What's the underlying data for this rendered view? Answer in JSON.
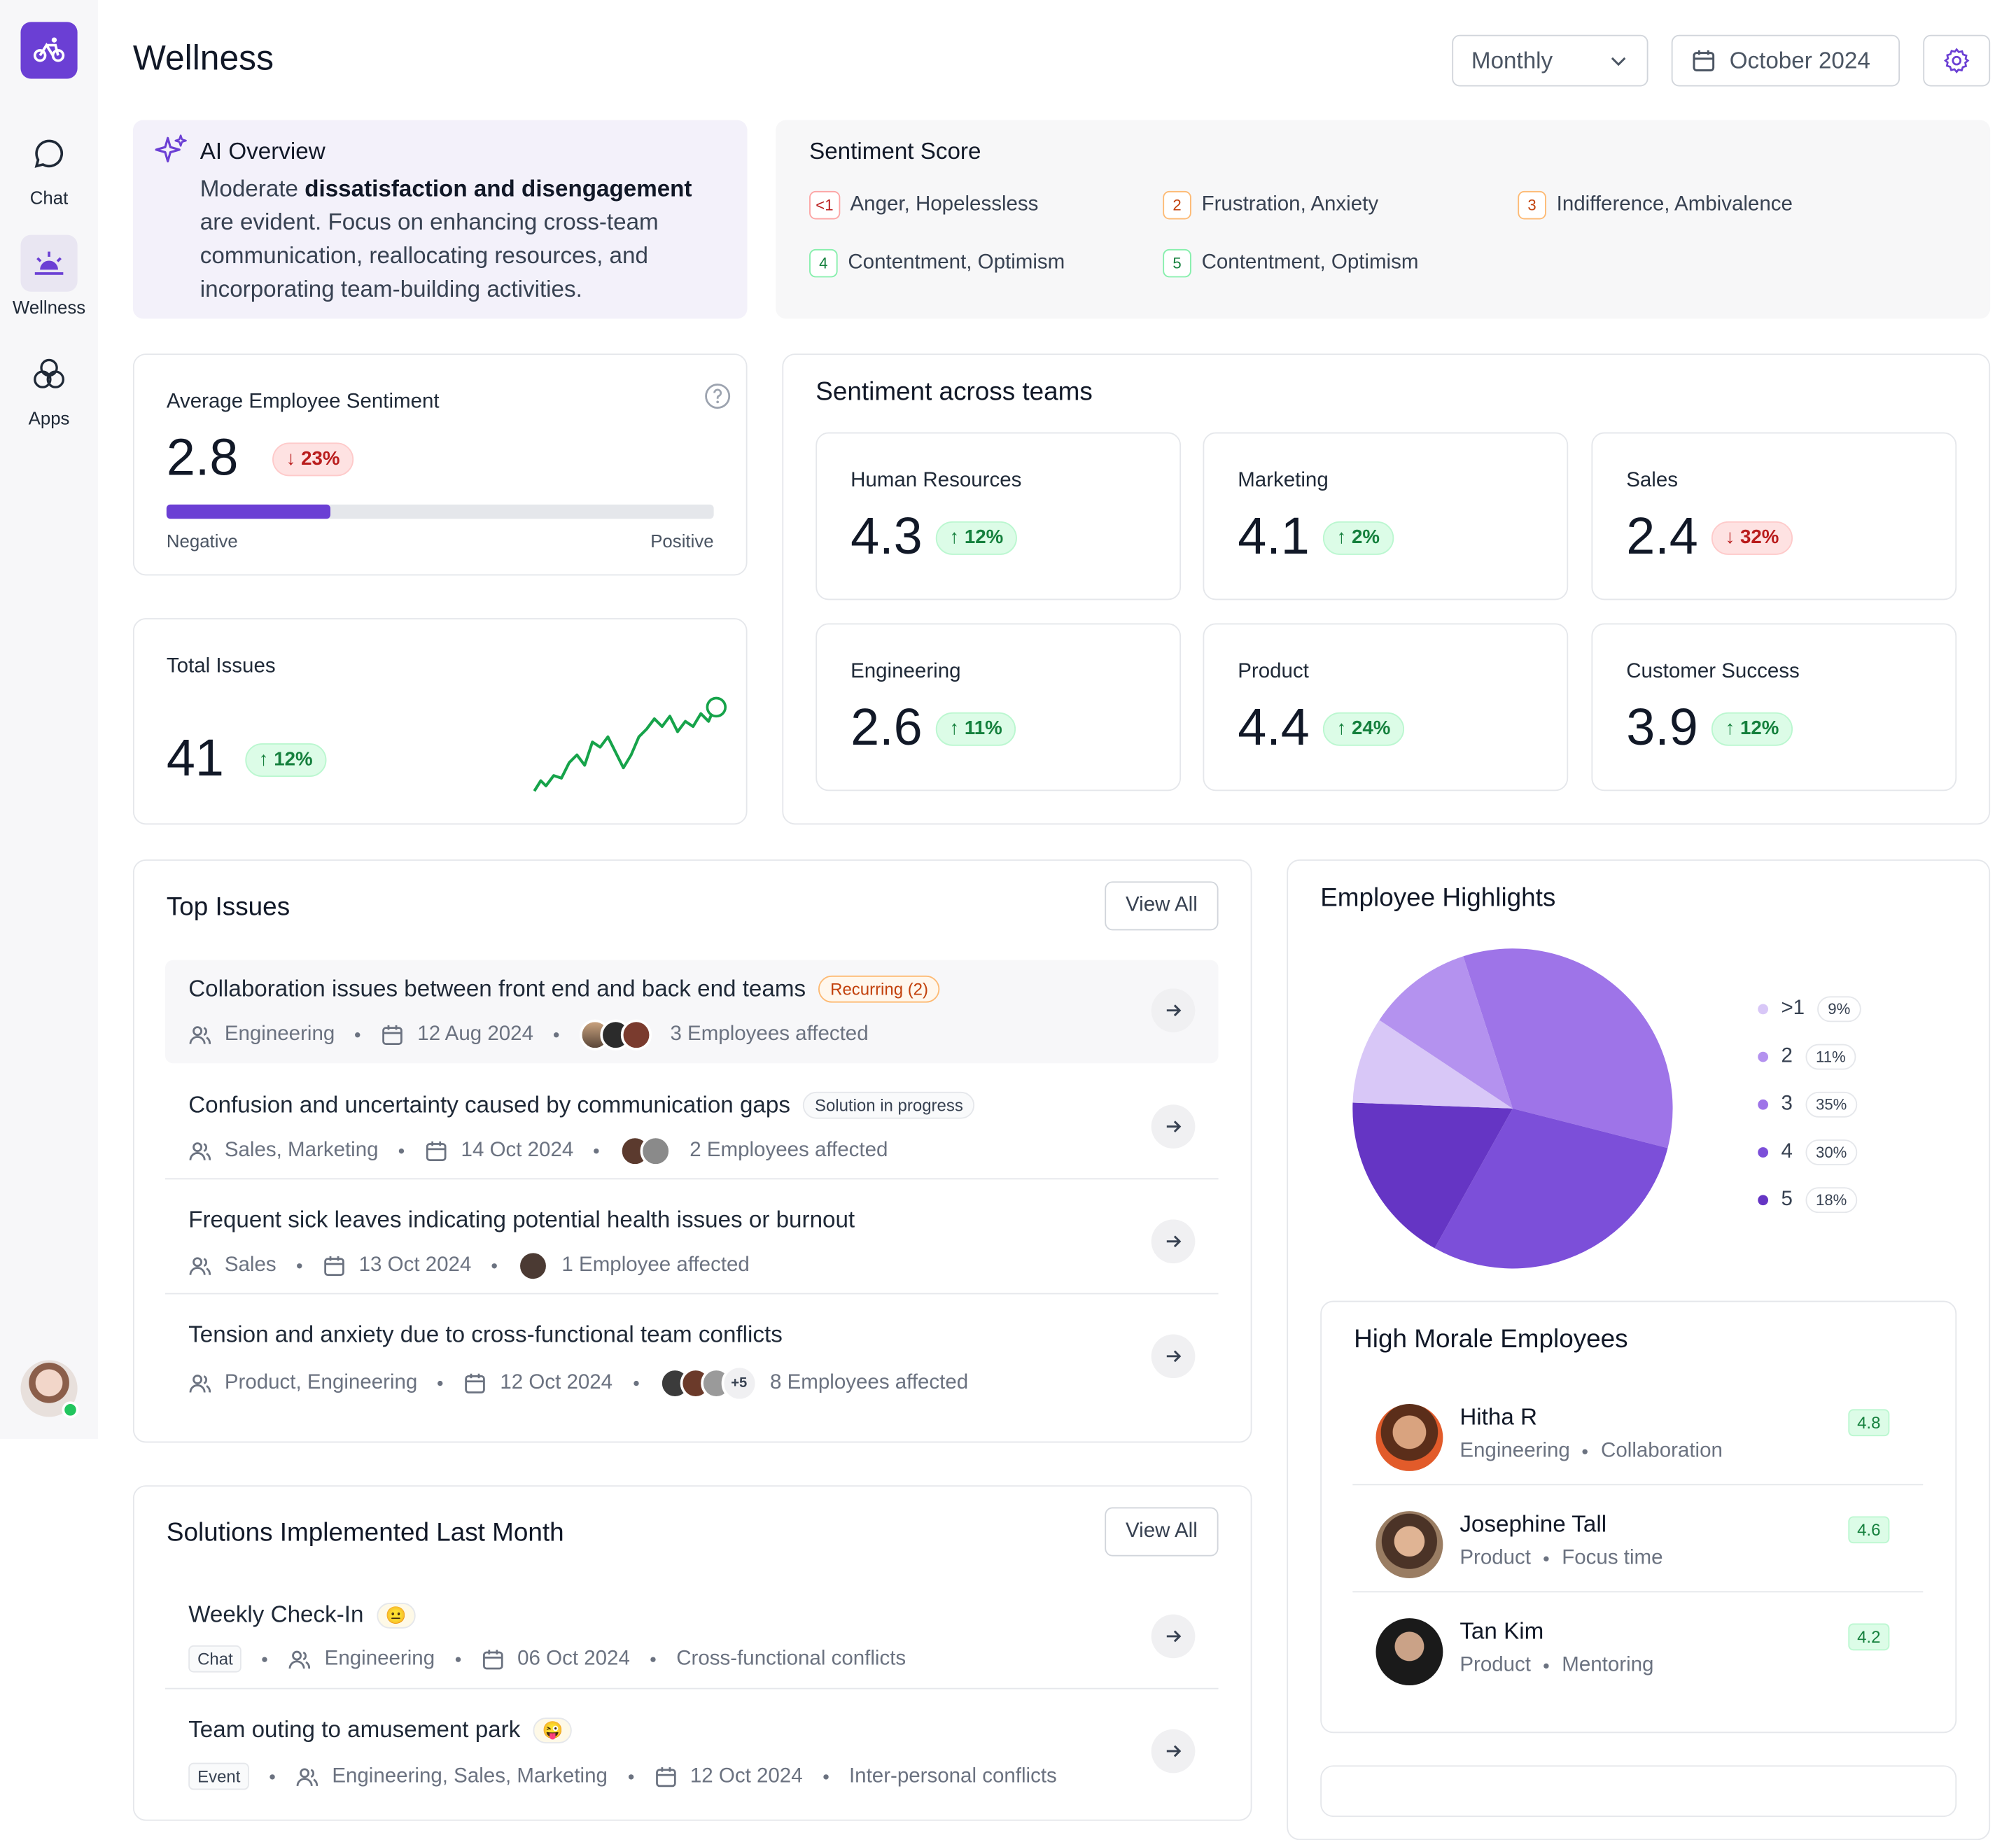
{
  "sidebar": {
    "items": [
      {
        "label": "Chat",
        "icon": "chat-icon"
      },
      {
        "label": "Wellness",
        "icon": "wellness-icon"
      },
      {
        "label": "Apps",
        "icon": "apps-icon"
      }
    ]
  },
  "header": {
    "title": "Wellness",
    "period": "Monthly",
    "date": "October 2024"
  },
  "ai_overview": {
    "title": "AI Overview",
    "text_before": "Moderate ",
    "text_bold": "dissatisfaction and disengagement",
    "text_after": " are evident. Focus on enhancing cross-team communication, reallocating resources, and incorporating team-building activities."
  },
  "sentiment_score": {
    "title": "Sentiment Score",
    "items": [
      {
        "key": "<1",
        "label": "Anger, Hopelessless"
      },
      {
        "key": "2",
        "label": "Frustration, Anxiety"
      },
      {
        "key": "3",
        "label": "Indifference, Ambivalence"
      },
      {
        "key": "4",
        "label": "Contentment, Optimism"
      },
      {
        "key": "5",
        "label": "Contentment, Optimism"
      }
    ]
  },
  "avg_sentiment": {
    "title": "Average Employee Sentiment",
    "value": "2.8",
    "change": "23%",
    "direction": "down",
    "progress": 0.3,
    "low_label": "Negative",
    "high_label": "Positive"
  },
  "total_issues": {
    "title": "Total Issues",
    "value": "41",
    "change": "12%",
    "direction": "up"
  },
  "teams": {
    "title": "Sentiment across teams",
    "items": [
      {
        "name": "Human Resources",
        "value": "4.3",
        "change": "12%",
        "direction": "up"
      },
      {
        "name": "Marketing",
        "value": "4.1",
        "change": "2%",
        "direction": "up"
      },
      {
        "name": "Sales",
        "value": "2.4",
        "change": "32%",
        "direction": "down"
      },
      {
        "name": "Engineering",
        "value": "2.6",
        "change": "11%",
        "direction": "up"
      },
      {
        "name": "Product",
        "value": "4.4",
        "change": "24%",
        "direction": "up"
      },
      {
        "name": "Customer Success",
        "value": "3.9",
        "change": "12%",
        "direction": "up"
      }
    ]
  },
  "top_issues": {
    "title": "Top Issues",
    "view_all": "View All",
    "items": [
      {
        "title": "Collaboration issues between front end and back end teams",
        "tag": "Recurring (2)",
        "teams": "Engineering",
        "date": "12 Aug 2024",
        "affected": "3 Employees affected"
      },
      {
        "title": "Confusion and uncertainty caused by communication gaps",
        "tag": "Solution in progress",
        "teams": "Sales, Marketing",
        "date": "14 Oct 2024",
        "affected": "2 Employees affected"
      },
      {
        "title": "Frequent sick leaves indicating potential health issues or burnout",
        "tag": "",
        "teams": "Sales",
        "date": "13 Oct 2024",
        "affected": "1 Employee affected"
      },
      {
        "title": "Tension and anxiety due to cross-functional team conflicts",
        "tag": "",
        "teams": "Product, Engineering",
        "date": "12 Oct 2024",
        "extra": "+5",
        "affected": "8 Employees affected"
      }
    ]
  },
  "solutions": {
    "title": "Solutions Implemented Last Month",
    "view_all": "View All",
    "items": [
      {
        "title": "Weekly Check-In",
        "emoji": "😐",
        "type": "Chat",
        "teams": "Engineering",
        "date": "06 Oct 2024",
        "category": "Cross-functional conflicts"
      },
      {
        "title": "Team outing to amusement park",
        "emoji": "😜",
        "type": "Event",
        "teams": "Engineering, Sales, Marketing",
        "date": "12 Oct 2024",
        "category": "Inter-personal conflicts"
      }
    ]
  },
  "highlights": {
    "title": "Employee Highlights",
    "legend": [
      {
        "label": ">1",
        "pct": "9%",
        "color": "#d8c7f7"
      },
      {
        "label": "2",
        "pct": "11%",
        "color": "#b492ef"
      },
      {
        "label": "3",
        "pct": "35%",
        "color": "#9e74e8"
      },
      {
        "label": "4",
        "pct": "30%",
        "color": "#7c4fd9"
      },
      {
        "label": "5",
        "pct": "18%",
        "color": "#6535c4"
      }
    ]
  },
  "chart_data": {
    "type": "pie",
    "categories": [
      ">1",
      "2",
      "3",
      "4",
      "5"
    ],
    "values": [
      9,
      11,
      35,
      30,
      18
    ]
  },
  "high_morale": {
    "title": "High Morale Employees",
    "items": [
      {
        "name": "Hitha R",
        "team": "Engineering",
        "trait": "Collaboration",
        "score": "4.8"
      },
      {
        "name": "Josephine Tall",
        "team": "Product",
        "trait": "Focus time",
        "score": "4.6"
      },
      {
        "name": "Tan Kim",
        "team": "Product",
        "trait": "Mentoring",
        "score": "4.2"
      }
    ]
  }
}
